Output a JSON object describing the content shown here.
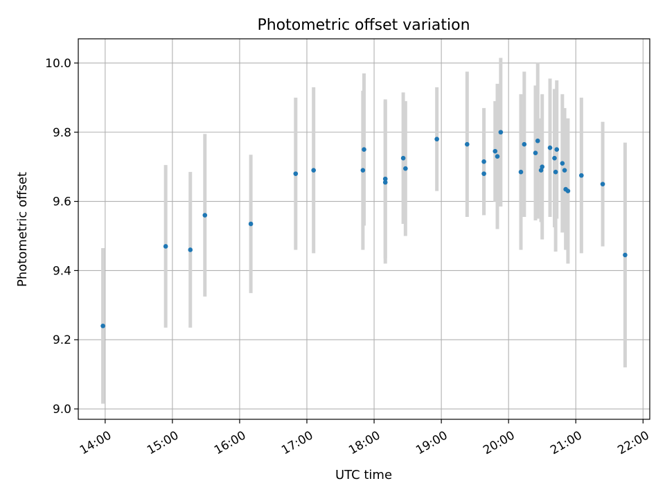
{
  "chart_data": {
    "type": "scatter",
    "title": "Photometric offset variation",
    "xlabel": "UTC time",
    "ylabel": "Photometric offset",
    "x_axis_type": "time",
    "xlim": [
      "13:36",
      "22:06"
    ],
    "ylim": [
      8.97,
      10.07
    ],
    "x_ticks": [
      "14:00",
      "15:00",
      "16:00",
      "17:00",
      "18:00",
      "19:00",
      "20:00",
      "21:00",
      "22:00"
    ],
    "y_ticks": [
      "9.0",
      "9.2",
      "9.4",
      "9.6",
      "9.8",
      "10.0"
    ],
    "grid": true,
    "marker_color": "#1f77b4",
    "errorbar_color": "#d3d3d3",
    "series": [
      {
        "points": [
          {
            "t": "13:58",
            "y": 9.24,
            "err": 0.225
          },
          {
            "t": "14:54",
            "y": 9.47,
            "err": 0.235
          },
          {
            "t": "15:16",
            "y": 9.46,
            "err": 0.225
          },
          {
            "t": "15:29",
            "y": 9.56,
            "err": 0.235
          },
          {
            "t": "16:10",
            "y": 9.535,
            "err": 0.2
          },
          {
            "t": "16:50",
            "y": 9.68,
            "err": 0.22
          },
          {
            "t": "17:06",
            "y": 9.69,
            "err": 0.24
          },
          {
            "t": "17:50",
            "y": 9.69,
            "err": 0.23
          },
          {
            "t": "17:51",
            "y": 9.75,
            "err": 0.22
          },
          {
            "t": "18:10",
            "y": 9.655,
            "err": 0.235
          },
          {
            "t": "18:10",
            "y": 9.665,
            "err": 0.23
          },
          {
            "t": "18:26",
            "y": 9.725,
            "err": 0.19
          },
          {
            "t": "18:28",
            "y": 9.695,
            "err": 0.195
          },
          {
            "t": "18:56",
            "y": 9.78,
            "err": 0.15
          },
          {
            "t": "19:23",
            "y": 9.765,
            "err": 0.21
          },
          {
            "t": "19:38",
            "y": 9.715,
            "err": 0.155
          },
          {
            "t": "19:38",
            "y": 9.68,
            "err": 0.12
          },
          {
            "t": "19:48",
            "y": 9.745,
            "err": 0.145
          },
          {
            "t": "19:50",
            "y": 9.73,
            "err": 0.21
          },
          {
            "t": "19:53",
            "y": 9.8,
            "err": 0.215
          },
          {
            "t": "20:11",
            "y": 9.685,
            "err": 0.225
          },
          {
            "t": "20:14",
            "y": 9.765,
            "err": 0.21
          },
          {
            "t": "20:24",
            "y": 9.74,
            "err": 0.195
          },
          {
            "t": "20:26",
            "y": 9.775,
            "err": 0.225
          },
          {
            "t": "20:29",
            "y": 9.69,
            "err": 0.15
          },
          {
            "t": "20:30",
            "y": 9.7,
            "err": 0.21
          },
          {
            "t": "20:37",
            "y": 9.755,
            "err": 0.2
          },
          {
            "t": "20:41",
            "y": 9.725,
            "err": 0.2
          },
          {
            "t": "20:42",
            "y": 9.685,
            "err": 0.23
          },
          {
            "t": "20:43",
            "y": 9.75,
            "err": 0.2
          },
          {
            "t": "20:48",
            "y": 9.71,
            "err": 0.2
          },
          {
            "t": "20:50",
            "y": 9.69,
            "err": 0.18
          },
          {
            "t": "20:51",
            "y": 9.635,
            "err": 0.175
          },
          {
            "t": "20:53",
            "y": 9.63,
            "err": 0.21
          },
          {
            "t": "21:05",
            "y": 9.675,
            "err": 0.225
          },
          {
            "t": "21:24",
            "y": 9.65,
            "err": 0.18
          },
          {
            "t": "21:44",
            "y": 9.445,
            "err": 0.325
          }
        ]
      }
    ]
  }
}
